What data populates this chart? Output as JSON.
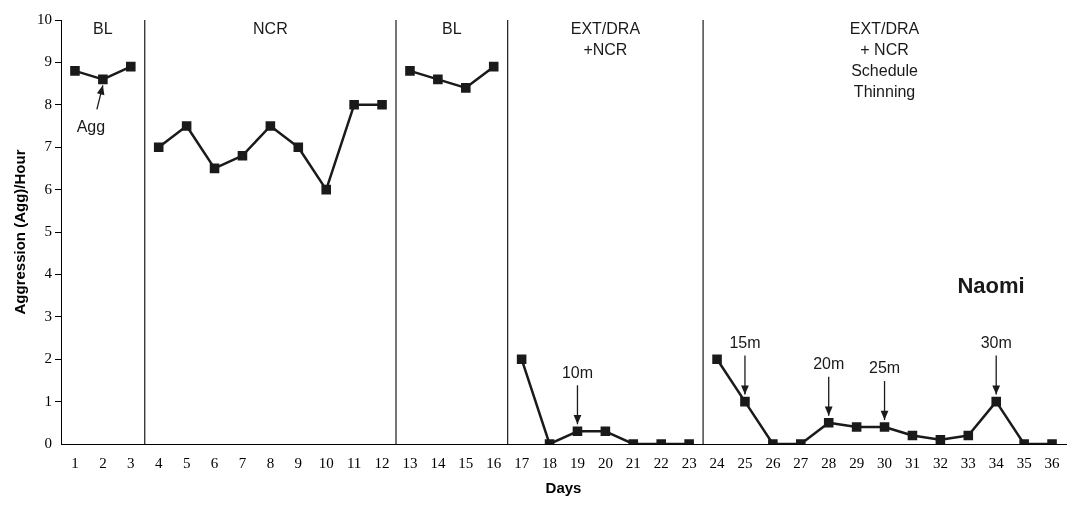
{
  "chart_data": {
    "type": "line",
    "xlabel": "Days",
    "ylabel": "Aggression (Agg)/Hour",
    "xlim": [
      0.5,
      36.5
    ],
    "xticks": [
      1,
      2,
      3,
      4,
      5,
      6,
      7,
      8,
      9,
      10,
      11,
      12,
      13,
      14,
      15,
      16,
      17,
      18,
      19,
      20,
      21,
      22,
      23,
      24,
      25,
      26,
      27,
      28,
      29,
      30,
      31,
      32,
      33,
      34,
      35,
      36
    ],
    "ylim": [
      0,
      10
    ],
    "yticks": [
      0,
      1,
      2,
      3,
      4,
      5,
      6,
      7,
      8,
      9,
      10
    ],
    "grid": false,
    "legend": false,
    "marker": "square",
    "line_style": "solid",
    "series": [
      {
        "color": "#1a1a1a",
        "x": [
          1,
          2,
          3
        ],
        "values": [
          8.8,
          8.6,
          8.9
        ]
      },
      {
        "color": "#1a1a1a",
        "x": [
          4,
          5,
          6,
          7,
          8,
          9,
          10,
          11,
          12
        ],
        "values": [
          7,
          7.5,
          6.5,
          6.8,
          7.5,
          7,
          6,
          8,
          8
        ]
      },
      {
        "color": "#1a1a1a",
        "x": [
          13,
          14,
          15,
          16
        ],
        "values": [
          8.8,
          8.6,
          8.4,
          8.9
        ]
      },
      {
        "color": "#1a1a1a",
        "x": [
          17,
          18,
          19,
          20,
          21,
          22,
          23
        ],
        "values": [
          2,
          0,
          0.3,
          0.3,
          0,
          0,
          0
        ]
      },
      {
        "color": "#1a1a1a",
        "x": [
          24,
          25,
          26,
          27,
          28,
          29,
          30,
          31,
          32,
          33,
          34,
          35,
          36
        ],
        "values": [
          2,
          1,
          0,
          0,
          0.5,
          0.4,
          0.4,
          0.2,
          0.1,
          0.2,
          1,
          0,
          0
        ]
      }
    ],
    "ref_lines": [
      {
        "axis": "x",
        "value": 3.5,
        "color": "#1a1a1a"
      },
      {
        "axis": "x",
        "value": 12.5,
        "color": "#1a1a1a"
      },
      {
        "axis": "x",
        "value": 16.5,
        "color": "#1a1a1a"
      },
      {
        "axis": "x",
        "value": 23.5,
        "color": "#1a1a1a"
      }
    ],
    "annotations": [
      "BL",
      "NCR",
      "BL",
      "EXT/DRA\n+NCR",
      "EXT/DRA\n+ NCR\nSchedule\nThinning",
      {
        "text": "Agg",
        "x": 2,
        "y": 8.6
      },
      {
        "text": "10m",
        "x": 19,
        "y": 0.3
      },
      {
        "text": "15m",
        "x": 25,
        "y": 1
      },
      {
        "text": "20m",
        "x": 28,
        "y": 0.5
      },
      {
        "text": "25m",
        "x": 30,
        "y": 0.4
      },
      {
        "text": "30m",
        "x": 34,
        "y": 1
      },
      "Naomi"
    ]
  }
}
